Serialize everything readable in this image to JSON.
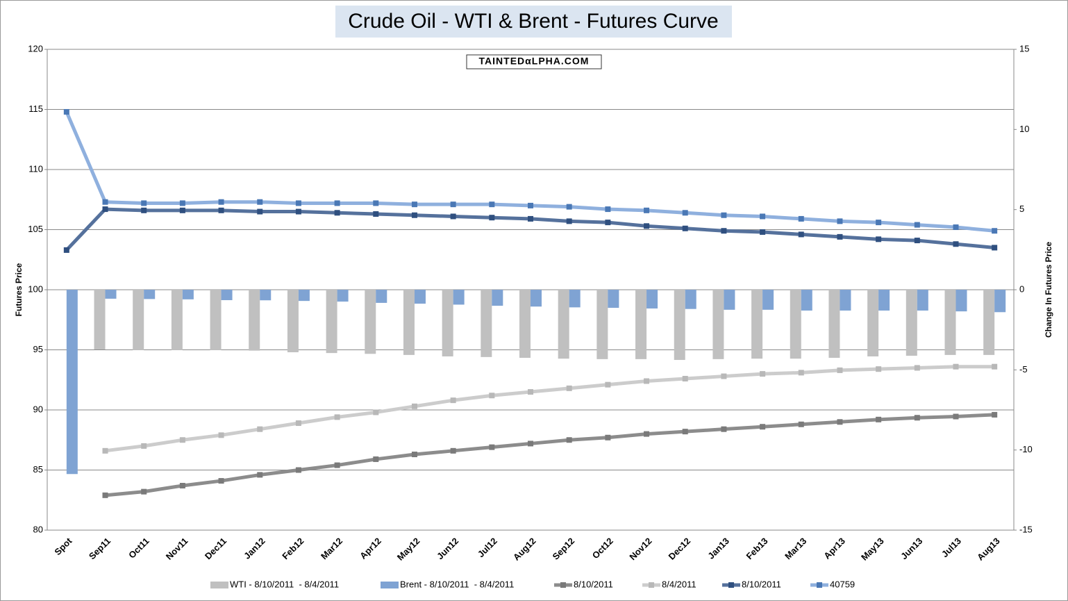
{
  "chart_data": {
    "type": "combo",
    "title": "Crude Oil - WTI & Brent - Futures Curve",
    "watermark": "TAINTEDαLPHA.COM",
    "y_label": "Futures Price",
    "y2_label": "Change In Futures Price",
    "categories": [
      "Spot",
      "Sep11",
      "Oct11",
      "Nov11",
      "Dec11",
      "Jan12",
      "Feb12",
      "Mar12",
      "Apr12",
      "May12",
      "Jun12",
      "Jul12",
      "Aug12",
      "Sep12",
      "Oct12",
      "Nov12",
      "Dec12",
      "Jan13",
      "Feb13",
      "Mar13",
      "Apr13",
      "May13",
      "Jun13",
      "Jul13",
      "Aug13"
    ],
    "ylim": [
      80,
      120
    ],
    "yticks": [
      80,
      85,
      90,
      95,
      100,
      105,
      110,
      115,
      120
    ],
    "y2lim": [
      -15,
      15
    ],
    "y2ticks": [
      -15,
      -10,
      -5,
      0,
      5,
      10,
      15
    ],
    "grid": true,
    "legend": "bottom",
    "series": [
      {
        "name": "WTI - 8/10/2011  - 8/4/2011",
        "type": "bar",
        "axis": "y2",
        "color": "#c0c0c0",
        "values": [
          null,
          -3.73,
          -3.77,
          -3.77,
          -3.77,
          -3.8,
          -3.9,
          -3.95,
          -4.0,
          -4.07,
          -4.16,
          -4.2,
          -4.25,
          -4.3,
          -4.33,
          -4.33,
          -4.38,
          -4.33,
          -4.3,
          -4.3,
          -4.25,
          -4.16,
          -4.12,
          -4.07,
          -4.07
        ]
      },
      {
        "name": "Brent - 8/10/2011  - 8/4/2011",
        "type": "bar",
        "axis": "y2",
        "color": "#7fa3d3",
        "values": [
          -11.5,
          -0.56,
          -0.58,
          -0.6,
          -0.65,
          -0.66,
          -0.7,
          -0.74,
          -0.82,
          -0.87,
          -0.93,
          -1.0,
          -1.05,
          -1.1,
          -1.13,
          -1.17,
          -1.2,
          -1.25,
          -1.25,
          -1.3,
          -1.3,
          -1.3,
          -1.3,
          -1.35,
          -1.4
        ]
      },
      {
        "name": "8/10/2011",
        "type": "line",
        "color": "#8c8c8c",
        "marker": "#7a7a7a",
        "values": [
          null,
          82.9,
          83.2,
          83.7,
          84.1,
          84.6,
          85.0,
          85.4,
          85.9,
          86.3,
          86.6,
          86.9,
          87.2,
          87.5,
          87.7,
          88.0,
          88.2,
          88.4,
          88.6,
          88.8,
          89.0,
          89.2,
          89.35,
          89.45,
          89.6
        ]
      },
      {
        "name": "8/4/2011",
        "type": "line",
        "color": "#cccccc",
        "marker": "#b8b8b8",
        "values": [
          null,
          86.6,
          87.0,
          87.5,
          87.9,
          88.4,
          88.9,
          89.4,
          89.8,
          90.3,
          90.8,
          91.2,
          91.5,
          91.8,
          92.1,
          92.4,
          92.6,
          92.8,
          93.0,
          93.1,
          93.3,
          93.4,
          93.5,
          93.6,
          93.6
        ]
      },
      {
        "name": "8/10/2011",
        "type": "line",
        "color": "#55719c",
        "marker": "#2f4f7f",
        "values": [
          103.3,
          106.7,
          106.6,
          106.6,
          106.6,
          106.5,
          106.5,
          106.4,
          106.3,
          106.2,
          106.1,
          106.0,
          105.9,
          105.7,
          105.6,
          105.3,
          105.1,
          104.9,
          104.8,
          104.6,
          104.4,
          104.2,
          104.1,
          103.8,
          103.5
        ]
      },
      {
        "name": "40759",
        "type": "line",
        "color": "#8fb0de",
        "marker": "#4a78b5",
        "values": [
          114.8,
          107.3,
          107.2,
          107.2,
          107.3,
          107.3,
          107.2,
          107.2,
          107.2,
          107.1,
          107.1,
          107.1,
          107.0,
          106.9,
          106.7,
          106.6,
          106.4,
          106.2,
          106.1,
          105.9,
          105.7,
          105.6,
          105.4,
          105.2,
          104.9
        ]
      }
    ]
  }
}
